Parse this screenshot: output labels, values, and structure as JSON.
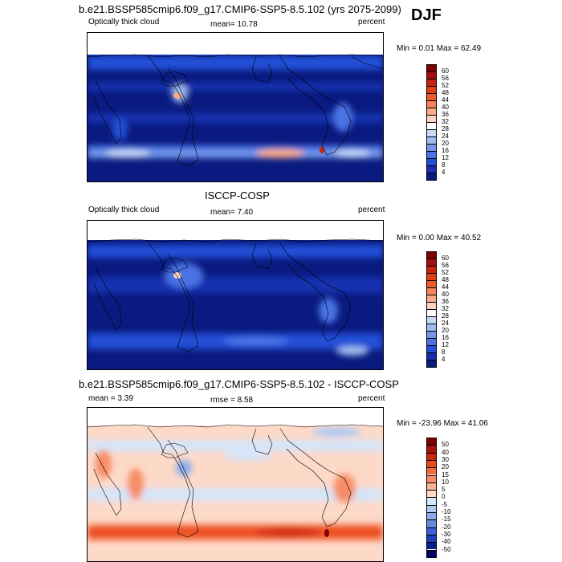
{
  "season": "DJF",
  "panels": [
    {
      "title": "b.e21.BSSP585cmip6.f09_g17.CMIP6-SSP5-8.5.102 (yrs 2075-2099)",
      "left_label": "Optically thick cloud",
      "mid_label": "mean=  10.78",
      "right_label": "percent",
      "minmax": "Min =  0.01 Max =  62.49"
    },
    {
      "title": "ISCCP-COSP",
      "left_label": "Optically thick cloud",
      "mid_label": "mean=  7.40",
      "right_label": "percent",
      "minmax": "Min =  0.00 Max =  40.52"
    },
    {
      "title": "b.e21.BSSP585cmip6.f09_g17.CMIP6-SSP5-8.5.102 - ISCCP-COSP",
      "left_label": "mean =  3.39",
      "mid_label": "rmse =  8.58",
      "right_label": "percent",
      "minmax": "Min = -23.96 Max =  41.06"
    }
  ],
  "colorbars": {
    "abs_labels": [
      "60",
      "56",
      "52",
      "48",
      "44",
      "40",
      "36",
      "32",
      "28",
      "24",
      "20",
      "16",
      "12",
      "8",
      "4"
    ],
    "abs_colors": [
      "#7f0000",
      "#a30e0e",
      "#c8230f",
      "#e03f12",
      "#ef5b2a",
      "#f7835b",
      "#f9ab8a",
      "#fbd3c0",
      "#ffffff",
      "#c7d9f5",
      "#9dbcf0",
      "#7397ea",
      "#4a73e4",
      "#2450d6",
      "#1630b0",
      "#0a1a80"
    ],
    "diff_labels": [
      "50",
      "40",
      "30",
      "20",
      "15",
      "10",
      "5",
      "0",
      "-5",
      "-10",
      "-15",
      "-20",
      "-30",
      "-40",
      "-50"
    ],
    "diff_colors": [
      "#7f0000",
      "#a8120e",
      "#d0250f",
      "#ec4a1a",
      "#f36a3c",
      "#f78d68",
      "#fab396",
      "#fdd9c8",
      "#d5e5fa",
      "#b0c9f2",
      "#8aaaea",
      "#6288e0",
      "#3b62d4",
      "#1e3fbc",
      "#0a1f8f",
      "#000066"
    ]
  }
}
